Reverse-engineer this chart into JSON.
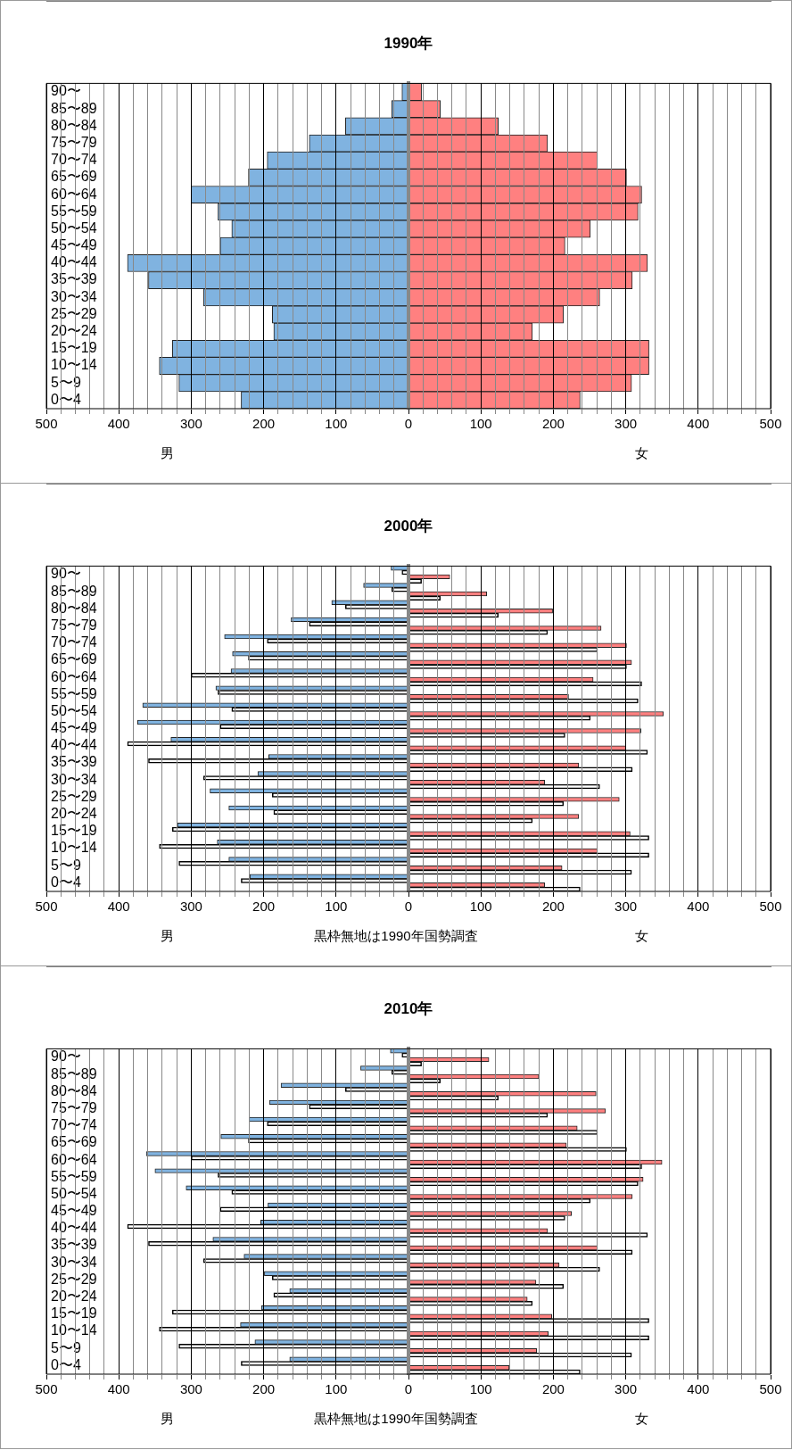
{
  "chart_data": [
    {
      "type": "bar",
      "orientation": "horizontal",
      "title": "1990年",
      "categories": [
        "90〜",
        "85〜89",
        "80〜84",
        "75〜79",
        "70〜74",
        "65〜69",
        "60〜64",
        "55〜59",
        "50〜54",
        "45〜49",
        "40〜44",
        "35〜39",
        "30〜34",
        "25〜29",
        "20〜24",
        "15〜19",
        "10〜14",
        "5〜9",
        "0〜4"
      ],
      "series": [
        {
          "color": "#80b3e0",
          "values": [
            -9,
            -23,
            -87,
            -137,
            -195,
            -221,
            -300,
            -263,
            -244,
            -260,
            -388,
            -359,
            -283,
            -188,
            -186,
            -326,
            -344,
            -317,
            -231
          ]
        },
        {
          "color": "#ff8080",
          "values": [
            18,
            44,
            124,
            192,
            261,
            301,
            322,
            317,
            251,
            216,
            330,
            309,
            264,
            214,
            171,
            332,
            332,
            308,
            237
          ]
        }
      ],
      "xlim": [
        -500,
        500
      ],
      "xticks": [
        {
          "value": -500,
          "label": "500"
        },
        {
          "value": -480,
          "label": null
        },
        {
          "value": -460,
          "label": null
        },
        {
          "value": -440,
          "label": null
        },
        {
          "value": -420,
          "label": null
        },
        {
          "value": -400,
          "label": "400"
        },
        {
          "value": -380,
          "label": null
        },
        {
          "value": -360,
          "label": null
        },
        {
          "value": -340,
          "label": null
        },
        {
          "value": -320,
          "label": null
        },
        {
          "value": -300,
          "label": "300"
        },
        {
          "value": -280,
          "label": null
        },
        {
          "value": -260,
          "label": null
        },
        {
          "value": -240,
          "label": null
        },
        {
          "value": -220,
          "label": null
        },
        {
          "value": -200,
          "label": "200"
        },
        {
          "value": -180,
          "label": null
        },
        {
          "value": -160,
          "label": null
        },
        {
          "value": -140,
          "label": null
        },
        {
          "value": -120,
          "label": null
        },
        {
          "value": -100,
          "label": "100"
        },
        {
          "value": -80,
          "label": null
        },
        {
          "value": -60,
          "label": null
        },
        {
          "value": -40,
          "label": null
        },
        {
          "value": -20,
          "label": null
        },
        0,
        {
          "value": 20,
          "label": null
        },
        {
          "value": 40,
          "label": null
        },
        {
          "value": 60,
          "label": null
        },
        {
          "value": 80,
          "label": null
        },
        100,
        {
          "value": 120,
          "label": null
        },
        {
          "value": 140,
          "label": null
        },
        {
          "value": 160,
          "label": null
        },
        {
          "value": 180,
          "label": null
        },
        200,
        {
          "value": 220,
          "label": null
        },
        {
          "value": 240,
          "label": null
        },
        {
          "value": 260,
          "label": null
        },
        {
          "value": 280,
          "label": null
        },
        300,
        {
          "value": 320,
          "label": null
        },
        {
          "value": 340,
          "label": null
        },
        {
          "value": 360,
          "label": null
        },
        {
          "value": 380,
          "label": null
        },
        400,
        {
          "value": 420,
          "label": null
        },
        {
          "value": 440,
          "label": null
        },
        {
          "value": 460,
          "label": null
        },
        {
          "value": 480,
          "label": null
        },
        500
      ],
      "grid": "x",
      "stacked": true,
      "annotations": [
        "男",
        "女"
      ]
    },
    {
      "type": "bar",
      "orientation": "horizontal",
      "title": "2000年",
      "categories": [
        "90〜",
        "85〜89",
        "80〜84",
        "75〜79",
        "70〜74",
        "65〜69",
        "60〜64",
        "55〜59",
        "50〜54",
        "45〜49",
        "40〜44",
        "35〜39",
        "30〜34",
        "25〜29",
        "20〜24",
        "15〜19",
        "10〜14",
        "5〜9",
        "0〜4"
      ],
      "series": [
        {
          "color": "#80b3e0",
          "values": [
            -24,
            -62,
            -106,
            -162,
            -254,
            -243,
            -245,
            -266,
            -367,
            -374,
            -328,
            -193,
            -208,
            -274,
            -248,
            -319,
            -264,
            -248,
            -219
          ]
        },
        {
          "color": "#ffffff",
          "values": [
            -9,
            -23,
            -87,
            -137,
            -195,
            -221,
            -300,
            -263,
            -244,
            -260,
            -388,
            -359,
            -283,
            -188,
            -186,
            -326,
            -344,
            -317,
            -231
          ]
        },
        {
          "color": "#ff8080",
          "values": [
            57,
            108,
            199,
            266,
            301,
            308,
            255,
            221,
            352,
            321,
            300,
            235,
            188,
            291,
            235,
            306,
            261,
            212,
            188
          ]
        },
        {
          "color": "#ffffff",
          "values": [
            18,
            44,
            124,
            192,
            261,
            301,
            322,
            317,
            251,
            216,
            330,
            309,
            264,
            214,
            171,
            332,
            332,
            308,
            237
          ]
        }
      ],
      "xlim": [
        -500,
        500
      ],
      "xticks": [
        {
          "value": -500,
          "label": "500"
        },
        {
          "value": -480,
          "label": null
        },
        {
          "value": -460,
          "label": null
        },
        {
          "value": -440,
          "label": null
        },
        {
          "value": -420,
          "label": null
        },
        {
          "value": -400,
          "label": "400"
        },
        {
          "value": -380,
          "label": null
        },
        {
          "value": -360,
          "label": null
        },
        {
          "value": -340,
          "label": null
        },
        {
          "value": -320,
          "label": null
        },
        {
          "value": -300,
          "label": "300"
        },
        {
          "value": -280,
          "label": null
        },
        {
          "value": -260,
          "label": null
        },
        {
          "value": -240,
          "label": null
        },
        {
          "value": -220,
          "label": null
        },
        {
          "value": -200,
          "label": "200"
        },
        {
          "value": -180,
          "label": null
        },
        {
          "value": -160,
          "label": null
        },
        {
          "value": -140,
          "label": null
        },
        {
          "value": -120,
          "label": null
        },
        {
          "value": -100,
          "label": "100"
        },
        {
          "value": -80,
          "label": null
        },
        {
          "value": -60,
          "label": null
        },
        {
          "value": -40,
          "label": null
        },
        {
          "value": -20,
          "label": null
        },
        0,
        {
          "value": 20,
          "label": null
        },
        {
          "value": 40,
          "label": null
        },
        {
          "value": 60,
          "label": null
        },
        {
          "value": 80,
          "label": null
        },
        100,
        {
          "value": 120,
          "label": null
        },
        {
          "value": 140,
          "label": null
        },
        {
          "value": 160,
          "label": null
        },
        {
          "value": 180,
          "label": null
        },
        200,
        {
          "value": 220,
          "label": null
        },
        {
          "value": 240,
          "label": null
        },
        {
          "value": 260,
          "label": null
        },
        {
          "value": 280,
          "label": null
        },
        300,
        {
          "value": 320,
          "label": null
        },
        {
          "value": 340,
          "label": null
        },
        {
          "value": 360,
          "label": null
        },
        {
          "value": 380,
          "label": null
        },
        400,
        {
          "value": 420,
          "label": null
        },
        {
          "value": 440,
          "label": null
        },
        {
          "value": 460,
          "label": null
        },
        {
          "value": 480,
          "label": null
        },
        500
      ],
      "grid": "x",
      "annotations": [
        "男",
        "黒枠無地は1990年国勢調査",
        "女"
      ]
    },
    {
      "type": "bar",
      "orientation": "horizontal",
      "title": "2010年",
      "categories": [
        "90〜",
        "85〜89",
        "80〜84",
        "75〜79",
        "70〜74",
        "65〜69",
        "60〜64",
        "55〜59",
        "50〜54",
        "45〜49",
        "40〜44",
        "35〜39",
        "30〜34",
        "25〜29",
        "20〜24",
        "15〜19",
        "10〜14",
        "5〜9",
        "0〜4"
      ],
      "series": [
        {
          "color": "#80b3e0",
          "values": [
            -25,
            -66,
            -176,
            -192,
            -220,
            -259,
            -362,
            -350,
            -307,
            -194,
            -204,
            -270,
            -227,
            -199,
            -164,
            -203,
            -232,
            -212,
            -164
          ]
        },
        {
          "color": "#ffffff",
          "values": [
            -9,
            -23,
            -87,
            -137,
            -195,
            -221,
            -300,
            -263,
            -244,
            -260,
            -388,
            -359,
            -283,
            -188,
            -186,
            -326,
            -344,
            -317,
            -231
          ]
        },
        {
          "color": "#ff8080",
          "values": [
            111,
            180,
            259,
            272,
            233,
            218,
            350,
            324,
            309,
            225,
            192,
            261,
            208,
            176,
            164,
            198,
            193,
            177,
            139
          ]
        },
        {
          "color": "#ffffff",
          "values": [
            18,
            44,
            124,
            192,
            261,
            301,
            322,
            317,
            251,
            216,
            330,
            309,
            264,
            214,
            171,
            332,
            332,
            308,
            237
          ]
        }
      ],
      "xlim": [
        -500,
        500
      ],
      "xticks": [
        {
          "value": -500,
          "label": "500"
        },
        {
          "value": -480,
          "label": null
        },
        {
          "value": -460,
          "label": null
        },
        {
          "value": -440,
          "label": null
        },
        {
          "value": -420,
          "label": null
        },
        {
          "value": -400,
          "label": "400"
        },
        {
          "value": -380,
          "label": null
        },
        {
          "value": -360,
          "label": null
        },
        {
          "value": -340,
          "label": null
        },
        {
          "value": -320,
          "label": null
        },
        {
          "value": -300,
          "label": "300"
        },
        {
          "value": -280,
          "label": null
        },
        {
          "value": -260,
          "label": null
        },
        {
          "value": -240,
          "label": null
        },
        {
          "value": -220,
          "label": null
        },
        {
          "value": -200,
          "label": "200"
        },
        {
          "value": -180,
          "label": null
        },
        {
          "value": -160,
          "label": null
        },
        {
          "value": -140,
          "label": null
        },
        {
          "value": -120,
          "label": null
        },
        {
          "value": -100,
          "label": "100"
        },
        {
          "value": -80,
          "label": null
        },
        {
          "value": -60,
          "label": null
        },
        {
          "value": -40,
          "label": null
        },
        {
          "value": -20,
          "label": null
        },
        0,
        {
          "value": 20,
          "label": null
        },
        {
          "value": 40,
          "label": null
        },
        {
          "value": 60,
          "label": null
        },
        {
          "value": 80,
          "label": null
        },
        100,
        {
          "value": 120,
          "label": null
        },
        {
          "value": 140,
          "label": null
        },
        {
          "value": 160,
          "label": null
        },
        {
          "value": 180,
          "label": null
        },
        200,
        {
          "value": 220,
          "label": null
        },
        {
          "value": 240,
          "label": null
        },
        {
          "value": 260,
          "label": null
        },
        {
          "value": 280,
          "label": null
        },
        300,
        {
          "value": 320,
          "label": null
        },
        {
          "value": 340,
          "label": null
        },
        {
          "value": 360,
          "label": null
        },
        {
          "value": 380,
          "label": null
        },
        400,
        {
          "value": 420,
          "label": null
        },
        {
          "value": 440,
          "label": null
        },
        {
          "value": 460,
          "label": null
        },
        {
          "value": 480,
          "label": null
        },
        500
      ],
      "grid": "x",
      "annotations": [
        "男",
        "黒枠無地は1990年国勢調査",
        "女"
      ]
    }
  ]
}
